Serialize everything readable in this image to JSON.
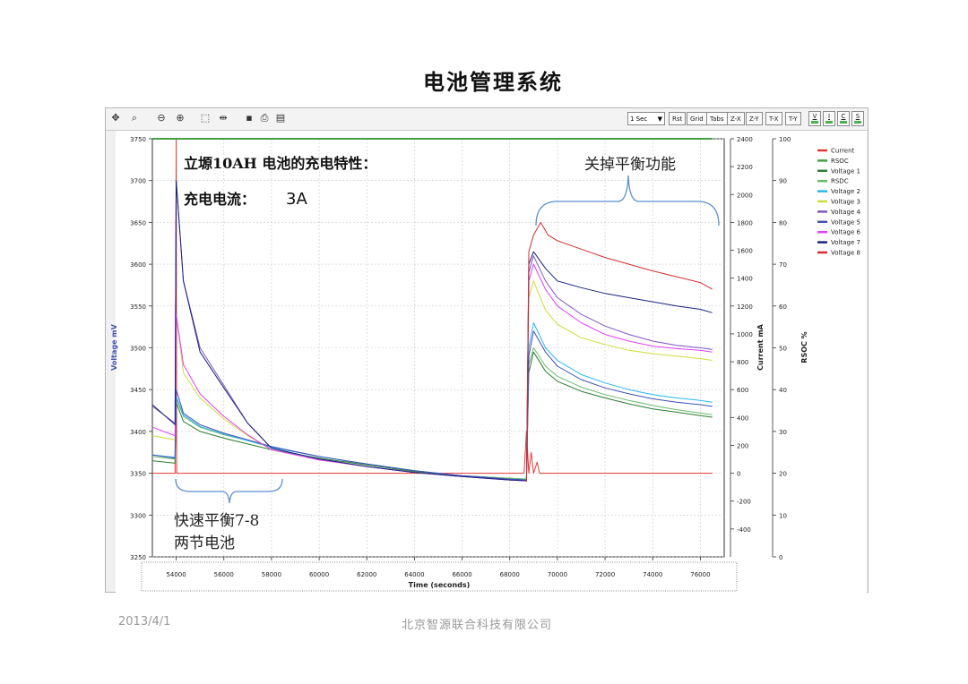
{
  "slide": {
    "title": "电池管理系统",
    "footer_date": "2013/4/1",
    "footer_company": "北京智源联合科技有限公司"
  },
  "toolbar": {
    "interval_select": "1 Sec",
    "buttons": [
      "Rst",
      "Grid",
      "Tabs",
      "Z-X",
      "Z-Y",
      "T-X",
      "T-Y"
    ],
    "toggles": [
      "V",
      "I",
      "C",
      "S"
    ],
    "icons": [
      "pan-icon",
      "zoom-fit-icon",
      "zoom-out-icon",
      "zoom-in-icon",
      "select-box-icon",
      "split-icon",
      "save-icon",
      "print-icon",
      "preview-icon"
    ]
  },
  "annotations": {
    "battery_heading": "立塬10AH 电池的充电特性：",
    "current_label": "充电电流：",
    "current_value": "3A",
    "balance_off": "关掉平衡功能",
    "fast_balance_line1": "快速平衡7-8",
    "fast_balance_line2": "两节电池"
  },
  "chart_data": {
    "type": "line",
    "title": "",
    "xlabel": "Time (seconds)",
    "ylabel": "Voltage mV",
    "y2label": "Current mA",
    "y3label": "RSOC %",
    "xlim": [
      53000,
      77000
    ],
    "ylim": [
      3250,
      3750
    ],
    "y2lim": [
      -600,
      2400
    ],
    "y3lim": [
      0,
      100
    ],
    "x_ticks": [
      54000,
      56000,
      58000,
      60000,
      62000,
      64000,
      66000,
      68000,
      70000,
      72000,
      74000,
      76000
    ],
    "y_ticks": [
      3250,
      3300,
      3350,
      3400,
      3450,
      3500,
      3550,
      3600,
      3650,
      3700,
      3750
    ],
    "y2_ticks": [
      -400,
      -200,
      0,
      200,
      400,
      600,
      800,
      1000,
      1200,
      1400,
      1600,
      1800,
      2000,
      2200,
      2400
    ],
    "y3_ticks": [
      0,
      10,
      20,
      30,
      40,
      50,
      60,
      70,
      80,
      90,
      100
    ],
    "grid": true,
    "legend_position": "right",
    "series": [
      {
        "name": "Current",
        "color": "#e53935",
        "axis": "y2",
        "points": [
          [
            53000,
            0
          ],
          [
            53950,
            0
          ],
          [
            54000,
            2400
          ],
          [
            54020,
            0
          ],
          [
            68600,
            0
          ],
          [
            68700,
            300
          ],
          [
            68800,
            0
          ],
          [
            68900,
            150
          ],
          [
            69000,
            0
          ],
          [
            69150,
            80
          ],
          [
            69250,
            0
          ],
          [
            76500,
            0
          ]
        ]
      },
      {
        "name": "RSOC",
        "color": "#43a047",
        "axis": "y3",
        "points": [
          [
            53000,
            100
          ],
          [
            76500,
            100
          ]
        ]
      },
      {
        "name": "Voltage 1",
        "color": "#2e7d32",
        "axis": "y",
        "points": [
          [
            53000,
            3365
          ],
          [
            53950,
            3362
          ],
          [
            54000,
            3435
          ],
          [
            54300,
            3412
          ],
          [
            55000,
            3400
          ],
          [
            56000,
            3392
          ],
          [
            57000,
            3385
          ],
          [
            58000,
            3378
          ],
          [
            60000,
            3368
          ],
          [
            62000,
            3360
          ],
          [
            64000,
            3352
          ],
          [
            66000,
            3347
          ],
          [
            68000,
            3344
          ],
          [
            68700,
            3343
          ],
          [
            68800,
            3470
          ],
          [
            69000,
            3495
          ],
          [
            69500,
            3472
          ],
          [
            70000,
            3460
          ],
          [
            71000,
            3448
          ],
          [
            72000,
            3440
          ],
          [
            73000,
            3433
          ],
          [
            74000,
            3427
          ],
          [
            75000,
            3423
          ],
          [
            76000,
            3419
          ],
          [
            76500,
            3417
          ]
        ]
      },
      {
        "name": "RSDC",
        "color": "#66bb6a",
        "axis": "y",
        "points": [
          [
            53000,
            3370
          ],
          [
            53950,
            3367
          ],
          [
            54000,
            3440
          ],
          [
            54300,
            3418
          ],
          [
            55000,
            3405
          ],
          [
            56000,
            3396
          ],
          [
            57000,
            3389
          ],
          [
            58000,
            3381
          ],
          [
            60000,
            3370
          ],
          [
            62000,
            3361
          ],
          [
            64000,
            3353
          ],
          [
            66000,
            3347
          ],
          [
            68000,
            3344
          ],
          [
            68700,
            3343
          ],
          [
            68800,
            3480
          ],
          [
            69000,
            3500
          ],
          [
            69500,
            3478
          ],
          [
            70000,
            3466
          ],
          [
            71000,
            3453
          ],
          [
            72000,
            3444
          ],
          [
            73000,
            3437
          ],
          [
            74000,
            3431
          ],
          [
            75000,
            3426
          ],
          [
            76000,
            3422
          ],
          [
            76500,
            3420
          ]
        ]
      },
      {
        "name": "Voltage 2",
        "color": "#29b6f6",
        "axis": "y",
        "points": [
          [
            53000,
            3372
          ],
          [
            53950,
            3369
          ],
          [
            54000,
            3442
          ],
          [
            54300,
            3420
          ],
          [
            55000,
            3406
          ],
          [
            56000,
            3397
          ],
          [
            57000,
            3389
          ],
          [
            58000,
            3381
          ],
          [
            60000,
            3370
          ],
          [
            62000,
            3361
          ],
          [
            64000,
            3353
          ],
          [
            66000,
            3347
          ],
          [
            68000,
            3343
          ],
          [
            68700,
            3342
          ],
          [
            68800,
            3500
          ],
          [
            69000,
            3530
          ],
          [
            69500,
            3500
          ],
          [
            70000,
            3485
          ],
          [
            71000,
            3468
          ],
          [
            72000,
            3458
          ],
          [
            73000,
            3450
          ],
          [
            74000,
            3444
          ],
          [
            75000,
            3440
          ],
          [
            76000,
            3437
          ],
          [
            76500,
            3435
          ]
        ]
      },
      {
        "name": "Voltage 3",
        "color": "#cddc39",
        "axis": "y",
        "points": [
          [
            53000,
            3395
          ],
          [
            53950,
            3390
          ],
          [
            54000,
            3540
          ],
          [
            54300,
            3470
          ],
          [
            55000,
            3440
          ],
          [
            56000,
            3415
          ],
          [
            57000,
            3395
          ],
          [
            58000,
            3378
          ],
          [
            60000,
            3366
          ],
          [
            62000,
            3358
          ],
          [
            64000,
            3351
          ],
          [
            66000,
            3346
          ],
          [
            68000,
            3342
          ],
          [
            68700,
            3341
          ],
          [
            68800,
            3560
          ],
          [
            69000,
            3580
          ],
          [
            69500,
            3545
          ],
          [
            70000,
            3528
          ],
          [
            71000,
            3512
          ],
          [
            72000,
            3504
          ],
          [
            73000,
            3497
          ],
          [
            74000,
            3493
          ],
          [
            75000,
            3490
          ],
          [
            76000,
            3487
          ],
          [
            76500,
            3485
          ]
        ]
      },
      {
        "name": "Voltage 4",
        "color": "#7e57c2",
        "axis": "y",
        "points": [
          [
            53000,
            3430
          ],
          [
            53950,
            3410
          ],
          [
            54000,
            3700
          ],
          [
            54300,
            3580
          ],
          [
            55000,
            3500
          ],
          [
            56000,
            3455
          ],
          [
            57000,
            3410
          ],
          [
            58000,
            3380
          ],
          [
            60000,
            3367
          ],
          [
            62000,
            3358
          ],
          [
            64000,
            3351
          ],
          [
            66000,
            3346
          ],
          [
            68000,
            3342
          ],
          [
            68700,
            3341
          ],
          [
            68800,
            3590
          ],
          [
            69000,
            3610
          ],
          [
            69500,
            3580
          ],
          [
            70000,
            3560
          ],
          [
            71000,
            3540
          ],
          [
            72000,
            3526
          ],
          [
            73000,
            3516
          ],
          [
            74000,
            3508
          ],
          [
            75000,
            3503
          ],
          [
            76000,
            3500
          ],
          [
            76500,
            3498
          ]
        ]
      },
      {
        "name": "Voltage 5",
        "color": "#3f51b5",
        "axis": "y",
        "points": [
          [
            53000,
            3372
          ],
          [
            53950,
            3368
          ],
          [
            54000,
            3450
          ],
          [
            54300,
            3422
          ],
          [
            55000,
            3408
          ],
          [
            56000,
            3398
          ],
          [
            57000,
            3390
          ],
          [
            58000,
            3382
          ],
          [
            60000,
            3370
          ],
          [
            62000,
            3361
          ],
          [
            64000,
            3353
          ],
          [
            66000,
            3347
          ],
          [
            68000,
            3343
          ],
          [
            68700,
            3342
          ],
          [
            68800,
            3490
          ],
          [
            69000,
            3520
          ],
          [
            69500,
            3495
          ],
          [
            70000,
            3478
          ],
          [
            71000,
            3462
          ],
          [
            72000,
            3452
          ],
          [
            73000,
            3445
          ],
          [
            74000,
            3439
          ],
          [
            75000,
            3435
          ],
          [
            76000,
            3432
          ],
          [
            76500,
            3430
          ]
        ]
      },
      {
        "name": "Voltage 6",
        "color": "#e040fb",
        "axis": "y",
        "points": [
          [
            53000,
            3405
          ],
          [
            53950,
            3395
          ],
          [
            54000,
            3540
          ],
          [
            54300,
            3480
          ],
          [
            55000,
            3445
          ],
          [
            56000,
            3418
          ],
          [
            57000,
            3396
          ],
          [
            58000,
            3378
          ],
          [
            60000,
            3366
          ],
          [
            62000,
            3358
          ],
          [
            64000,
            3351
          ],
          [
            66000,
            3346
          ],
          [
            68000,
            3342
          ],
          [
            68700,
            3341
          ],
          [
            68800,
            3580
          ],
          [
            69000,
            3600
          ],
          [
            69500,
            3570
          ],
          [
            70000,
            3550
          ],
          [
            71000,
            3530
          ],
          [
            72000,
            3516
          ],
          [
            73000,
            3508
          ],
          [
            74000,
            3502
          ],
          [
            75000,
            3499
          ],
          [
            76000,
            3497
          ],
          [
            76500,
            3495
          ]
        ]
      },
      {
        "name": "Voltage 7",
        "color": "#1a237e",
        "axis": "y",
        "points": [
          [
            53000,
            3432
          ],
          [
            53950,
            3408
          ],
          [
            54000,
            3700
          ],
          [
            54300,
            3580
          ],
          [
            55000,
            3495
          ],
          [
            56000,
            3452
          ],
          [
            57000,
            3410
          ],
          [
            58000,
            3380
          ],
          [
            60000,
            3367
          ],
          [
            62000,
            3358
          ],
          [
            64000,
            3351
          ],
          [
            66000,
            3346
          ],
          [
            68000,
            3342
          ],
          [
            68700,
            3341
          ],
          [
            68800,
            3600
          ],
          [
            69000,
            3615
          ],
          [
            69500,
            3595
          ],
          [
            70000,
            3580
          ],
          [
            71000,
            3572
          ],
          [
            72000,
            3565
          ],
          [
            73000,
            3560
          ],
          [
            74000,
            3555
          ],
          [
            75000,
            3550
          ],
          [
            76000,
            3546
          ],
          [
            76500,
            3542
          ]
        ]
      },
      {
        "name": "Voltage 8",
        "color": "#d32f2f",
        "axis": "y",
        "points": [
          [
            68700,
            3340
          ],
          [
            68800,
            3615
          ],
          [
            69000,
            3635
          ],
          [
            69300,
            3650
          ],
          [
            69600,
            3635
          ],
          [
            70000,
            3628
          ],
          [
            71000,
            3618
          ],
          [
            72000,
            3608
          ],
          [
            73000,
            3600
          ],
          [
            74000,
            3592
          ],
          [
            75000,
            3585
          ],
          [
            76000,
            3578
          ],
          [
            76500,
            3570
          ]
        ]
      }
    ]
  }
}
